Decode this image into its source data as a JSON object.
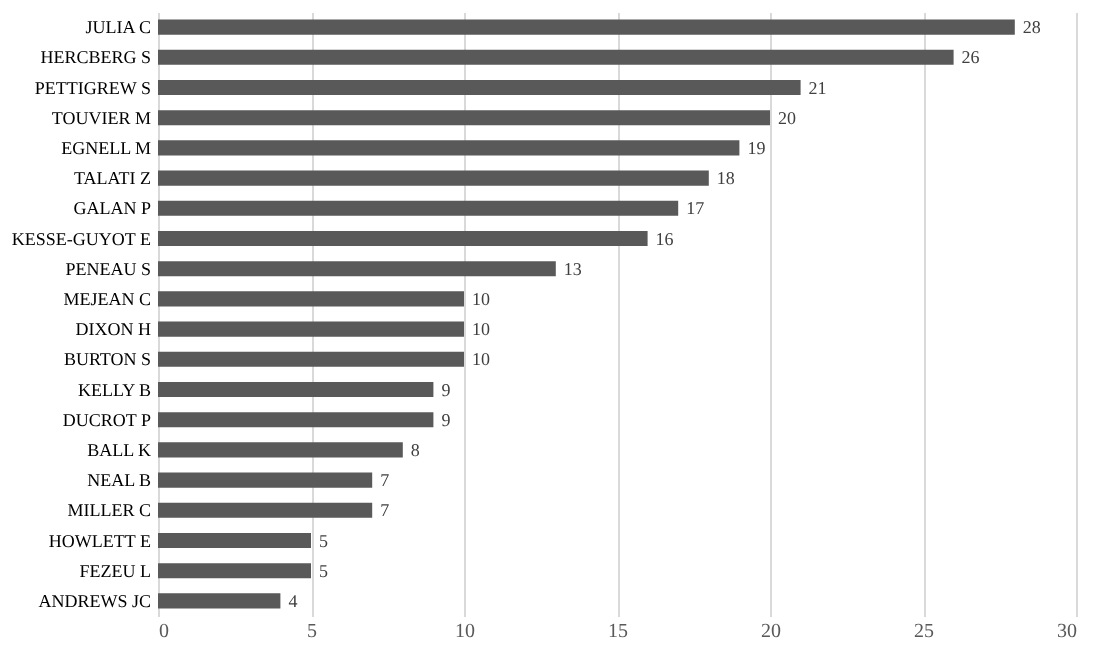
{
  "chart_data": {
    "type": "bar",
    "orientation": "horizontal",
    "categories": [
      "JULIA C",
      "HERCBERG S",
      "PETTIGREW S",
      "TOUVIER M",
      "EGNELL M",
      "TALATI Z",
      "GALAN P",
      "KESSE-GUYOT E",
      "PENEAU S",
      "MEJEAN C",
      "DIXON H",
      "BURTON S",
      "KELLY B",
      "DUCROT P",
      "BALL K",
      "NEAL B",
      "MILLER C",
      "HOWLETT E",
      "FEZEU L",
      "ANDREWS JC"
    ],
    "values": [
      28,
      26,
      21,
      20,
      19,
      18,
      17,
      16,
      13,
      10,
      10,
      10,
      9,
      9,
      8,
      7,
      7,
      5,
      5,
      4
    ],
    "color": "#595959",
    "xlim": [
      0,
      30
    ],
    "xticks": [
      0,
      5,
      10,
      15,
      20,
      25,
      30
    ],
    "grid": "x",
    "data_labels": true
  }
}
